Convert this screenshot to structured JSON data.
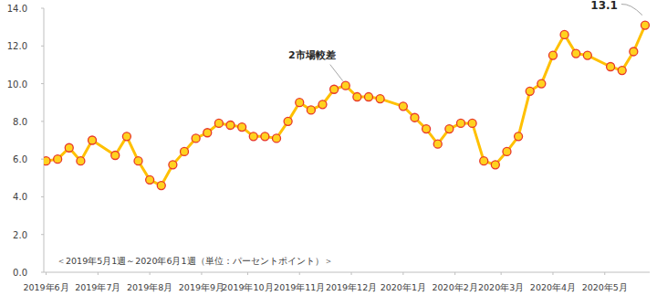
{
  "chart_data": {
    "type": "line",
    "subtitle": "＜2019年5月1週～2020年6月1週（単位：パーセントポイント）＞",
    "x": [
      0,
      1,
      2,
      3,
      4,
      6,
      7,
      8,
      9,
      10,
      11,
      12,
      13,
      14,
      15,
      16,
      17,
      18,
      19,
      20,
      21,
      22,
      23,
      24,
      25,
      26,
      27,
      28,
      29,
      31,
      32,
      33,
      34,
      35,
      36,
      37,
      38,
      39,
      40,
      41,
      42,
      43,
      44,
      45,
      46,
      47,
      49,
      50,
      51,
      52
    ],
    "values": [
      5.9,
      6.0,
      6.6,
      5.9,
      7.0,
      6.2,
      7.2,
      5.9,
      4.9,
      4.6,
      5.7,
      6.4,
      7.1,
      7.4,
      7.9,
      7.8,
      7.7,
      7.2,
      7.2,
      7.1,
      8.0,
      9.0,
      8.6,
      8.9,
      9.7,
      9.9,
      9.3,
      9.3,
      9.2,
      8.8,
      8.2,
      7.6,
      6.8,
      7.6,
      7.9,
      7.9,
      5.9,
      5.7,
      6.4,
      7.2,
      9.6,
      10.0,
      11.5,
      12.6,
      11.6,
      11.5,
      10.9,
      10.7,
      11.7,
      13.1
    ],
    "color": "#ffc000",
    "marker": "circle",
    "xlim": [
      -0.2,
      52.4
    ],
    "xticks": [
      {
        "value": 0,
        "label": "2019年6月"
      },
      {
        "value": 4.5,
        "label": "2019年7月"
      },
      {
        "value": 9,
        "label": "2019年8月"
      },
      {
        "value": 13.5,
        "label": "2019年9月"
      },
      {
        "value": 17.5,
        "label": "2019年10月"
      },
      {
        "value": 22,
        "label": "2019年11月"
      },
      {
        "value": 26.5,
        "label": "2019年12月"
      },
      {
        "value": 31,
        "label": "2020年1月"
      },
      {
        "value": 35.5,
        "label": "2020年2月"
      },
      {
        "value": 39.5,
        "label": "2020年3月"
      },
      {
        "value": 44,
        "label": "2020年4月"
      },
      {
        "value": 48.5,
        "label": "2020年5月"
      }
    ],
    "ylim": [
      0,
      14
    ],
    "yticks": [
      {
        "value": 0,
        "label": "0.0"
      },
      {
        "value": 2,
        "label": "2.0"
      },
      {
        "value": 4,
        "label": "4.0"
      },
      {
        "value": 6,
        "label": "6.0"
      },
      {
        "value": 8,
        "label": "8.0"
      },
      {
        "value": 10,
        "label": "10.0"
      },
      {
        "value": 12,
        "label": "12.0"
      },
      {
        "value": 14,
        "label": "14.0"
      }
    ],
    "grid": false,
    "annotations": [
      {
        "text": "2市場較差",
        "x": 26,
        "y": 9.9
      },
      {
        "text": "13.1",
        "x": 52,
        "y": 13.1
      }
    ]
  }
}
